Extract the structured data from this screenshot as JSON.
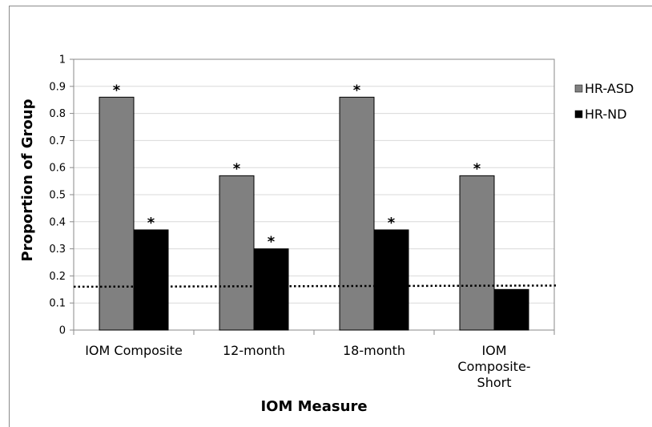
{
  "chart_data": {
    "type": "bar",
    "xlabel": "IOM Measure",
    "ylabel": "Proportion of Group",
    "ylim": [
      0,
      1
    ],
    "yticks": [
      "0",
      "0.1",
      "0.2",
      "0.3",
      "0.4",
      "0.5",
      "0.6",
      "0.7",
      "0.8",
      "0.9",
      "1"
    ],
    "categories": [
      [
        "IOM Composite"
      ],
      [
        "12-month"
      ],
      [
        "18-month"
      ],
      [
        "IOM",
        "Composite-",
        "Short"
      ]
    ],
    "series": [
      {
        "name": "HR-ASD",
        "color": "#808080",
        "values": [
          0.86,
          0.57,
          0.86,
          0.57
        ],
        "significant": [
          true,
          true,
          true,
          true
        ]
      },
      {
        "name": "HR-ND",
        "color": "#000000",
        "values": [
          0.37,
          0.3,
          0.37,
          0.15
        ],
        "significant": [
          true,
          true,
          true,
          false
        ]
      }
    ],
    "significance_marker": "*",
    "reference_line": {
      "value": 0.16,
      "style": "dotted"
    },
    "grid": true,
    "legend_position": "right"
  }
}
